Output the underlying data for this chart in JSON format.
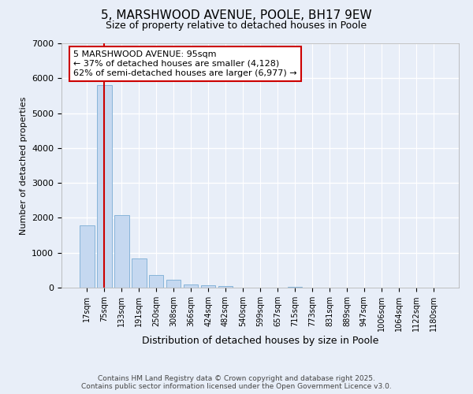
{
  "title_line1": "5, MARSHWOOD AVENUE, POOLE, BH17 9EW",
  "title_line2": "Size of property relative to detached houses in Poole",
  "xlabel": "Distribution of detached houses by size in Poole",
  "ylabel": "Number of detached properties",
  "categories": [
    "17sqm",
    "75sqm",
    "133sqm",
    "191sqm",
    "250sqm",
    "308sqm",
    "366sqm",
    "424sqm",
    "482sqm",
    "540sqm",
    "599sqm",
    "657sqm",
    "715sqm",
    "773sqm",
    "831sqm",
    "889sqm",
    "947sqm",
    "1006sqm",
    "1064sqm",
    "1122sqm",
    "1180sqm"
  ],
  "values": [
    1780,
    5800,
    2070,
    840,
    360,
    230,
    100,
    65,
    55,
    10,
    0,
    0,
    20,
    0,
    0,
    0,
    0,
    0,
    0,
    0,
    0
  ],
  "bar_color": "#c5d8f0",
  "bar_edge_color": "#7aadd4",
  "vline_color": "#cc0000",
  "vline_x": 1.0,
  "annotation_text": "5 MARSHWOOD AVENUE: 95sqm\n← 37% of detached houses are smaller (4,128)\n62% of semi-detached houses are larger (6,977) →",
  "annotation_box_facecolor": "#ffffff",
  "annotation_box_edgecolor": "#cc0000",
  "ylim": [
    0,
    7000
  ],
  "yticks": [
    0,
    1000,
    2000,
    3000,
    4000,
    5000,
    6000,
    7000
  ],
  "background_color": "#e8eef8",
  "grid_color": "#ffffff",
  "footer_line1": "Contains HM Land Registry data © Crown copyright and database right 2025.",
  "footer_line2": "Contains public sector information licensed under the Open Government Licence v3.0."
}
